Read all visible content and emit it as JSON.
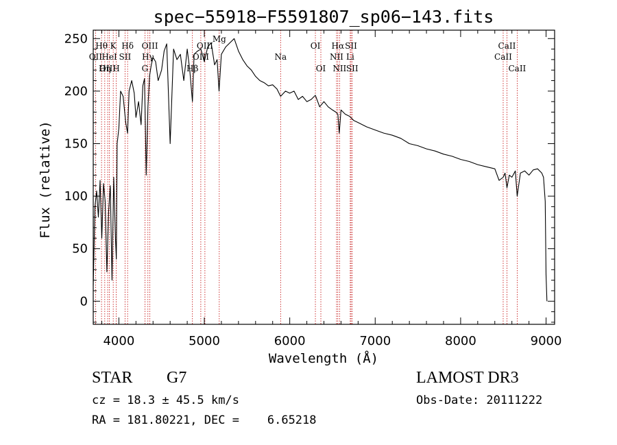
{
  "chart_data": {
    "type": "line",
    "title": "spec−55918−F5591807_sp06−143.fits",
    "xlabel": "Wavelength (Å)",
    "ylabel": "Flux (relative)",
    "xlim": [
      3700,
      9100
    ],
    "ylim": [
      -22,
      258
    ],
    "x_ticks": [
      4000,
      5000,
      6000,
      7000,
      8000,
      9000
    ],
    "y_ticks": [
      0,
      50,
      100,
      150,
      200,
      250
    ],
    "series": [
      {
        "name": "spectrum",
        "x": [
          3700,
          3720,
          3740,
          3760,
          3780,
          3800,
          3820,
          3840,
          3860,
          3880,
          3900,
          3920,
          3940,
          3960,
          3970,
          3980,
          4000,
          4020,
          4050,
          4080,
          4102,
          4120,
          4150,
          4180,
          4200,
          4230,
          4260,
          4280,
          4300,
          4320,
          4340,
          4360,
          4380,
          4400,
          4430,
          4460,
          4500,
          4530,
          4560,
          4600,
          4640,
          4680,
          4720,
          4760,
          4800,
          4830,
          4861,
          4880,
          4920,
          4960,
          5000,
          5040,
          5080,
          5120,
          5150,
          5172,
          5200,
          5250,
          5300,
          5350,
          5400,
          5450,
          5500,
          5550,
          5600,
          5650,
          5700,
          5750,
          5800,
          5850,
          5893,
          5950,
          6000,
          6050,
          6100,
          6150,
          6200,
          6250,
          6300,
          6350,
          6400,
          6450,
          6500,
          6540,
          6563,
          6580,
          6600,
          6650,
          6700,
          6750,
          6800,
          6900,
          7000,
          7100,
          7200,
          7300,
          7400,
          7500,
          7600,
          7700,
          7800,
          7900,
          8000,
          8100,
          8200,
          8300,
          8400,
          8450,
          8498,
          8520,
          8542,
          8570,
          8600,
          8640,
          8662,
          8700,
          8750,
          8800,
          8850,
          8900,
          8950,
          8970,
          8990,
          9000,
          9010
        ],
        "y": [
          15,
          90,
          105,
          80,
          115,
          60,
          112,
          95,
          28,
          85,
          110,
          20,
          118,
          60,
          40,
          150,
          165,
          200,
          195,
          170,
          160,
          200,
          210,
          198,
          175,
          190,
          168,
          205,
          212,
          120,
          185,
          215,
          225,
          232,
          228,
          210,
          220,
          238,
          245,
          150,
          240,
          230,
          235,
          210,
          240,
          220,
          190,
          235,
          238,
          240,
          228,
          242,
          246,
          225,
          230,
          200,
          235,
          242,
          246,
          250,
          238,
          230,
          224,
          220,
          214,
          210,
          208,
          205,
          206,
          202,
          195,
          200,
          198,
          200,
          192,
          195,
          190,
          192,
          196,
          185,
          190,
          185,
          182,
          180,
          178,
          160,
          182,
          178,
          176,
          172,
          170,
          166,
          163,
          160,
          158,
          155,
          150,
          148,
          145,
          143,
          140,
          138,
          135,
          133,
          130,
          128,
          126,
          115,
          118,
          122,
          108,
          120,
          118,
          124,
          100,
          122,
          124,
          120,
          125,
          126,
          122,
          118,
          95,
          25,
          0
        ]
      }
    ],
    "emission_lines": [
      {
        "label": "Hθ",
        "wave": 3797,
        "row": 1
      },
      {
        "label": "OII",
        "wave": 3727,
        "row": 2
      },
      {
        "label": "OIII",
        "wave": 3869,
        "row": 3
      },
      {
        "label": "HeI",
        "wave": 3889,
        "row": 2
      },
      {
        "label": "Hη",
        "wave": 3835,
        "row": 3
      },
      {
        "label": "K",
        "wave": 3934,
        "row": 1
      },
      {
        "label": "H",
        "wave": 3969,
        "row": 3
      },
      {
        "label": "SII",
        "wave": 4072,
        "row": 2
      },
      {
        "label": "Hδ",
        "wave": 4102,
        "row": 1
      },
      {
        "label": "OIII",
        "wave": 4363,
        "row": 1
      },
      {
        "label": "Hγ",
        "wave": 4340,
        "row": 2
      },
      {
        "label": "G",
        "wave": 4305,
        "row": 3
      },
      {
        "label": "OIII",
        "wave": 5007,
        "row": 1
      },
      {
        "label": "OIII",
        "wave": 4959,
        "row": 2
      },
      {
        "label": "Hβ",
        "wave": 4861,
        "row": 3
      },
      {
        "label": "Mg",
        "wave": 5175,
        "row": 0
      },
      {
        "label": "Na",
        "wave": 5893,
        "row": 2
      },
      {
        "label": "OI",
        "wave": 6300,
        "row": 1
      },
      {
        "label": "OI",
        "wave": 6364,
        "row": 3
      },
      {
        "label": "Hα",
        "wave": 6563,
        "row": 1
      },
      {
        "label": "SII",
        "wave": 6717,
        "row": 1
      },
      {
        "label": "NII",
        "wave": 6548,
        "row": 2
      },
      {
        "label": "Li",
        "wave": 6708,
        "row": 2
      },
      {
        "label": "NII",
        "wave": 6583,
        "row": 3
      },
      {
        "label": "SII",
        "wave": 6731,
        "row": 3
      },
      {
        "label": "CaII",
        "wave": 8542,
        "row": 1
      },
      {
        "label": "CaII",
        "wave": 8498,
        "row": 2
      },
      {
        "label": "CaII",
        "wave": 8662,
        "row": 3
      }
    ],
    "colors": {
      "spectrum": "#000000",
      "lines": "#c00000"
    }
  },
  "info": {
    "class": "STAR",
    "subclass": "G7",
    "cz": "cz = 18.3 ± 45.5 km/s",
    "radec": "RA = 181.80221, DEC =    6.65218",
    "survey": "LAMOST DR3",
    "obsdate": "Obs-Date: 20111222"
  }
}
